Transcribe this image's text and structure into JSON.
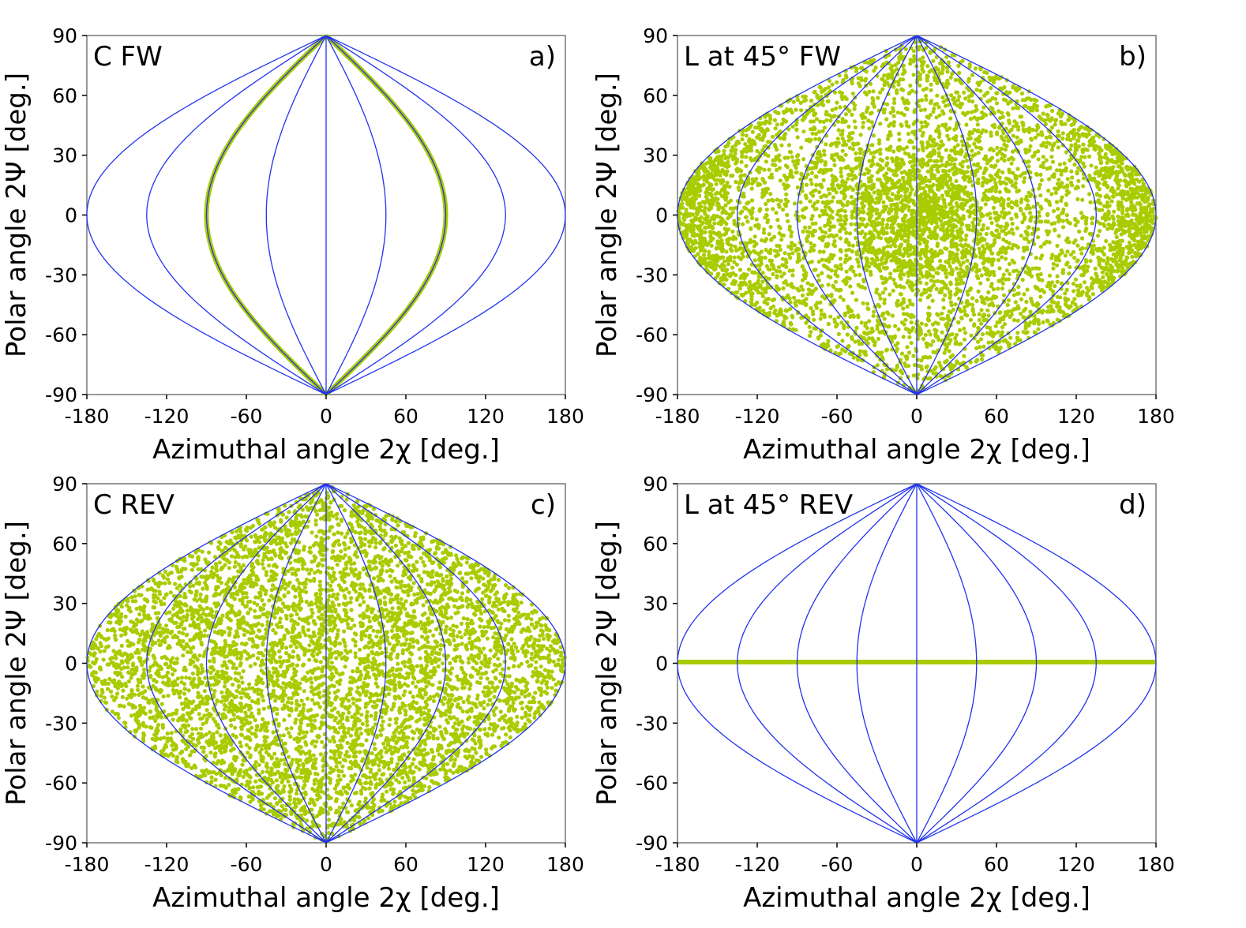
{
  "figure": {
    "layout": "2x2",
    "colors": {
      "grid_lines": "#2233ee",
      "data_points": "#a9cc00",
      "frame": "#555555"
    }
  },
  "chart_data": [
    {
      "id": "a",
      "type": "scatter",
      "title": "C FW",
      "panel_label": "a)",
      "xlabel": "Azimuthal angle 2χ [deg.]",
      "ylabel": "Polar angle 2Ψ [deg.]",
      "xlim": [
        -180,
        180
      ],
      "ylim": [
        -90,
        90
      ],
      "xticks": [
        -180,
        -120,
        -60,
        0,
        60,
        120,
        180
      ],
      "yticks": [
        90,
        60,
        30,
        0,
        -30,
        -60,
        -90
      ],
      "meridians_2chi": [
        -180,
        -135,
        -90,
        -45,
        0,
        45,
        90,
        135,
        180
      ],
      "distribution": {
        "kind": "meridian_pair",
        "azimuths_2chi": [
          -90,
          90
        ]
      }
    },
    {
      "id": "b",
      "type": "scatter",
      "title": "L at 45° FW",
      "panel_label": "b)",
      "xlabel": "Azimuthal angle 2χ [deg.]",
      "ylabel": "Polar angle 2Ψ [deg.]",
      "xlim": [
        -180,
        180
      ],
      "ylim": [
        -90,
        90
      ],
      "xticks": [
        -180,
        -120,
        -60,
        0,
        60,
        120,
        180
      ],
      "yticks": [
        90,
        60,
        30,
        0,
        -30,
        -60,
        -90
      ],
      "meridians_2chi": [
        -180,
        -135,
        -90,
        -45,
        0,
        45,
        90,
        135,
        180
      ],
      "distribution": {
        "kind": "scattered_full",
        "count": 6000,
        "concentration": "dense near 2χ=±180 and near center"
      }
    },
    {
      "id": "c",
      "type": "scatter",
      "title": "C REV",
      "panel_label": "c)",
      "xlabel": "Azimuthal angle 2χ [deg.]",
      "ylabel": "Polar angle 2Ψ [deg.]",
      "xlim": [
        -180,
        180
      ],
      "ylim": [
        -90,
        90
      ],
      "xticks": [
        -180,
        -120,
        -60,
        0,
        60,
        120,
        180
      ],
      "yticks": [
        90,
        60,
        30,
        0,
        -30,
        -60,
        -90
      ],
      "meridians_2chi": [
        -180,
        -135,
        -90,
        -45,
        0,
        45,
        90,
        135,
        180
      ],
      "distribution": {
        "kind": "scattered_full",
        "count": 6000,
        "concentration": "uniform"
      }
    },
    {
      "id": "d",
      "type": "scatter",
      "title": "L at 45° REV",
      "panel_label": "d)",
      "xlabel": "Azimuthal angle 2χ [deg.]",
      "ylabel": "Polar angle 2Ψ [deg.]",
      "xlim": [
        -180,
        180
      ],
      "ylim": [
        -90,
        90
      ],
      "xticks": [
        -180,
        -120,
        -60,
        0,
        60,
        120,
        180
      ],
      "yticks": [
        90,
        60,
        30,
        0,
        -30,
        -60,
        -90
      ],
      "meridians_2chi": [
        -180,
        -135,
        -90,
        -45,
        0,
        45,
        90,
        135,
        180
      ],
      "distribution": {
        "kind": "equator_line",
        "polar_2psi": 0
      }
    }
  ]
}
